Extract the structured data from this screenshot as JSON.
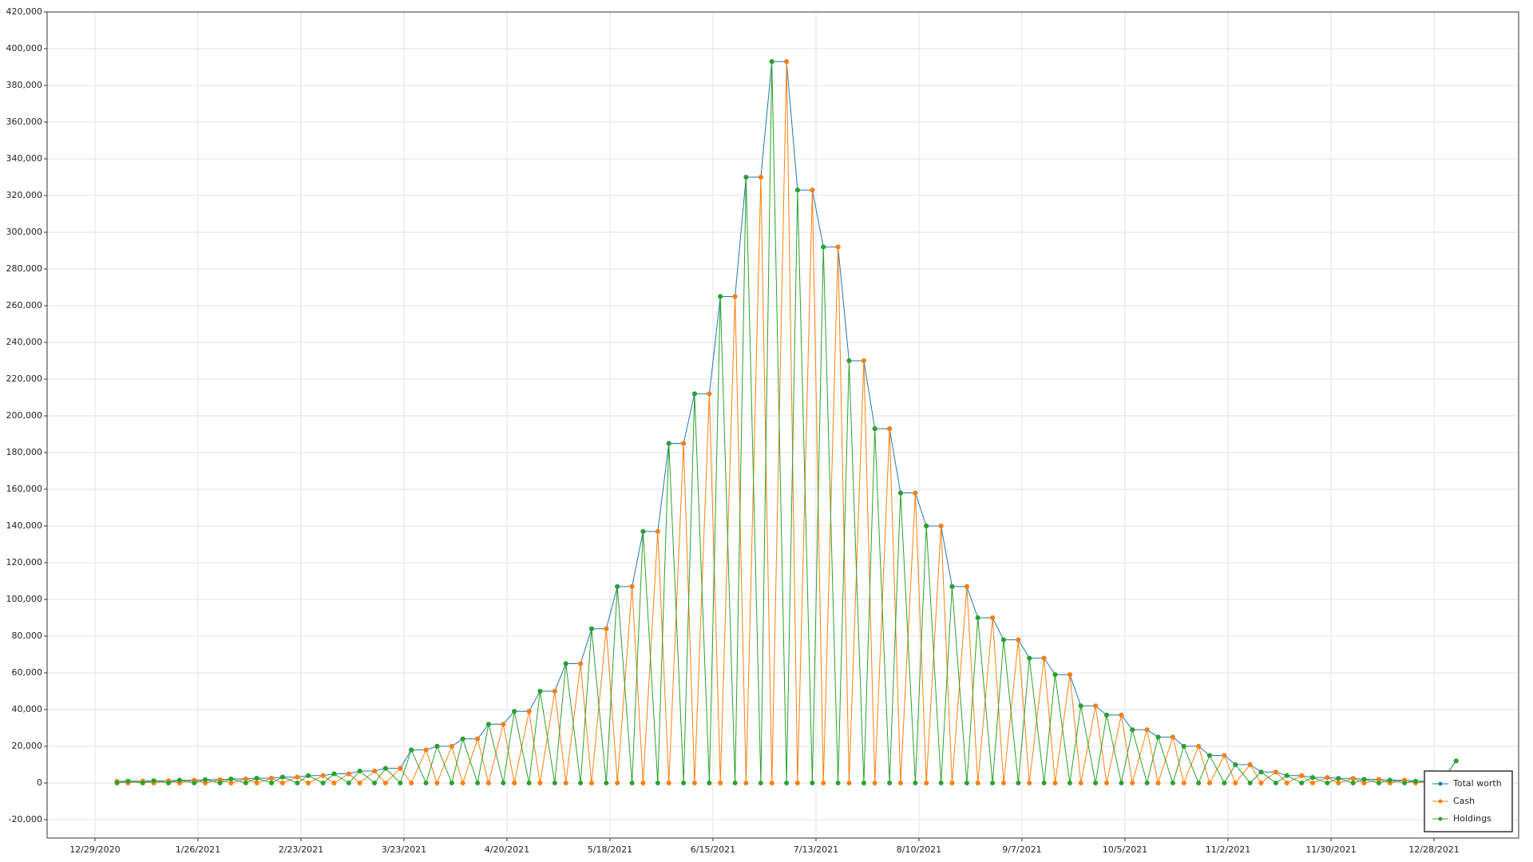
{
  "chart_data": {
    "type": "line",
    "x": [
      "1/4/2021",
      "1/7/2021",
      "1/11/2021",
      "1/14/2021",
      "1/18/2021",
      "1/21/2021",
      "1/25/2021",
      "1/28/2021",
      "2/1/2021",
      "2/4/2021",
      "2/8/2021",
      "2/11/2021",
      "2/15/2021",
      "2/18/2021",
      "2/22/2021",
      "2/25/2021",
      "3/1/2021",
      "3/4/2021",
      "3/8/2021",
      "3/11/2021",
      "3/15/2021",
      "3/18/2021",
      "3/22/2021",
      "3/25/2021",
      "3/29/2021",
      "4/1/2021",
      "4/5/2021",
      "4/8/2021",
      "4/12/2021",
      "4/15/2021",
      "4/19/2021",
      "4/22/2021",
      "4/26/2021",
      "4/29/2021",
      "5/3/2021",
      "5/6/2021",
      "5/10/2021",
      "5/13/2021",
      "5/17/2021",
      "5/20/2021",
      "5/24/2021",
      "5/27/2021",
      "5/31/2021",
      "6/3/2021",
      "6/7/2021",
      "6/10/2021",
      "6/14/2021",
      "6/17/2021",
      "6/21/2021",
      "6/24/2021",
      "6/28/2021",
      "7/1/2021",
      "7/5/2021",
      "7/8/2021",
      "7/12/2021",
      "7/15/2021",
      "7/19/2021",
      "7/22/2021",
      "7/26/2021",
      "7/29/2021",
      "8/2/2021",
      "8/5/2021",
      "8/9/2021",
      "8/12/2021",
      "8/16/2021",
      "8/19/2021",
      "8/23/2021",
      "8/26/2021",
      "8/30/2021",
      "9/2/2021",
      "9/6/2021",
      "9/9/2021",
      "9/13/2021",
      "9/16/2021",
      "9/20/2021",
      "9/23/2021",
      "9/27/2021",
      "9/30/2021",
      "10/4/2021",
      "10/7/2021",
      "10/11/2021",
      "10/14/2021",
      "10/18/2021",
      "10/21/2021",
      "10/25/2021",
      "10/28/2021",
      "11/1/2021",
      "11/4/2021",
      "11/8/2021",
      "11/11/2021",
      "11/15/2021",
      "11/18/2021",
      "11/22/2021",
      "11/25/2021",
      "11/29/2021",
      "12/2/2021",
      "12/6/2021",
      "12/9/2021",
      "12/13/2021",
      "12/16/2021",
      "12/20/2021",
      "12/23/2021",
      "12/27/2021",
      "12/30/2021",
      "1/3/2022"
    ],
    "series": [
      {
        "name": "Total worth",
        "color": "#1f77b4",
        "values": [
          800,
          1000,
          1000,
          1200,
          1200,
          1500,
          1500,
          1800,
          1800,
          2200,
          2200,
          2600,
          2600,
          3200,
          3200,
          4000,
          4000,
          5000,
          5000,
          6500,
          6500,
          8000,
          8000,
          18000,
          18000,
          20000,
          20000,
          24000,
          24000,
          32000,
          32000,
          39000,
          39000,
          50000,
          50000,
          65000,
          65000,
          84000,
          84000,
          107000,
          107000,
          137000,
          137000,
          185000,
          185000,
          212000,
          212000,
          265000,
          265000,
          330000,
          330000,
          393000,
          393000,
          323000,
          323000,
          292000,
          292000,
          230000,
          230000,
          193000,
          193000,
          158000,
          158000,
          140000,
          140000,
          107000,
          107000,
          90000,
          90000,
          78000,
          78000,
          68000,
          68000,
          59000,
          59000,
          42000,
          42000,
          37000,
          37000,
          29000,
          29000,
          25000,
          25000,
          20000,
          20000,
          15000,
          15000,
          10000,
          10000,
          6000,
          6000,
          4000,
          4000,
          3000,
          3000,
          2500,
          2500,
          2000,
          2000,
          1500,
          1500,
          1000,
          1000,
          700,
          12000
        ]
      },
      {
        "name": "Cash",
        "color": "#ff7f0e",
        "values": [
          800,
          0,
          1000,
          0,
          1200,
          0,
          1500,
          0,
          1800,
          0,
          2200,
          0,
          2600,
          0,
          3200,
          0,
          4000,
          0,
          5000,
          0,
          6500,
          0,
          8000,
          0,
          18000,
          0,
          20000,
          0,
          24000,
          0,
          32000,
          0,
          39000,
          0,
          50000,
          0,
          65000,
          0,
          84000,
          0,
          107000,
          0,
          137000,
          0,
          185000,
          0,
          212000,
          0,
          265000,
          0,
          330000,
          0,
          393000,
          0,
          323000,
          0,
          292000,
          0,
          230000,
          0,
          193000,
          0,
          158000,
          0,
          140000,
          0,
          107000,
          0,
          90000,
          0,
          78000,
          0,
          68000,
          0,
          59000,
          0,
          42000,
          0,
          37000,
          0,
          29000,
          0,
          25000,
          0,
          20000,
          0,
          15000,
          0,
          10000,
          0,
          6000,
          0,
          4000,
          0,
          3000,
          0,
          2500,
          0,
          2000,
          0,
          1500,
          0,
          1000,
          0,
          0
        ]
      },
      {
        "name": "Holdings",
        "color": "#2ca02c",
        "values": [
          0,
          1000,
          0,
          1200,
          0,
          1500,
          0,
          1800,
          0,
          2200,
          0,
          2600,
          0,
          3200,
          0,
          4000,
          0,
          5000,
          0,
          6500,
          0,
          8000,
          0,
          18000,
          0,
          20000,
          0,
          24000,
          0,
          32000,
          0,
          39000,
          0,
          50000,
          0,
          65000,
          0,
          84000,
          0,
          107000,
          0,
          137000,
          0,
          185000,
          0,
          212000,
          0,
          265000,
          0,
          330000,
          0,
          393000,
          0,
          323000,
          0,
          292000,
          0,
          230000,
          0,
          193000,
          0,
          158000,
          0,
          140000,
          0,
          107000,
          0,
          90000,
          0,
          78000,
          0,
          68000,
          0,
          59000,
          0,
          42000,
          0,
          37000,
          0,
          29000,
          0,
          25000,
          0,
          20000,
          0,
          15000,
          0,
          10000,
          0,
          6000,
          0,
          4000,
          0,
          3000,
          0,
          2500,
          0,
          2000,
          0,
          1500,
          0,
          1000,
          0,
          700,
          12000
        ]
      }
    ],
    "xlim": [
      "12/16/2020",
      "1/20/2022"
    ],
    "xticks": [
      "12/29/2020",
      "1/26/2021",
      "2/23/2021",
      "3/23/2021",
      "4/20/2021",
      "5/18/2021",
      "6/15/2021",
      "7/13/2021",
      "8/10/2021",
      "9/7/2021",
      "10/5/2021",
      "11/2/2021",
      "11/30/2021",
      "12/28/2021"
    ],
    "ylim": [
      -30000,
      420000
    ],
    "yticks": [
      {
        "value": -20000,
        "label": "-20,000"
      },
      0,
      {
        "value": 20000,
        "label": "20,000"
      },
      {
        "value": 40000,
        "label": "40,000"
      },
      {
        "value": 60000,
        "label": "60,000"
      },
      {
        "value": 80000,
        "label": "80,000"
      },
      {
        "value": 100000,
        "label": "100,000"
      },
      {
        "value": 120000,
        "label": "120,000"
      },
      {
        "value": 140000,
        "label": "140,000"
      },
      {
        "value": 160000,
        "label": "160,000"
      },
      {
        "value": 180000,
        "label": "180,000"
      },
      {
        "value": 200000,
        "label": "200,000"
      },
      {
        "value": 220000,
        "label": "220,000"
      },
      {
        "value": 240000,
        "label": "240,000"
      },
      {
        "value": 260000,
        "label": "260,000"
      },
      {
        "value": 280000,
        "label": "280,000"
      },
      {
        "value": 300000,
        "label": "300,000"
      },
      {
        "value": 320000,
        "label": "320,000"
      },
      {
        "value": 340000,
        "label": "340,000"
      },
      {
        "value": 360000,
        "label": "360,000"
      },
      {
        "value": 380000,
        "label": "380,000"
      },
      {
        "value": 400000,
        "label": "400,000"
      },
      {
        "value": 420000,
        "label": "420,000"
      }
    ],
    "grid": true,
    "legend": "lower right"
  }
}
